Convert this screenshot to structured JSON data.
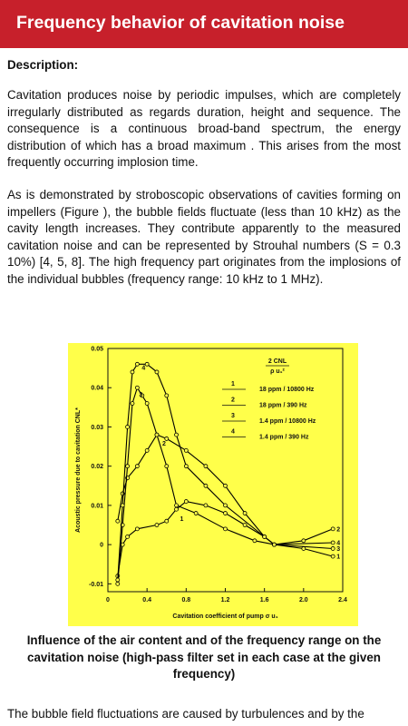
{
  "header": {
    "title": "Frequency behavior of cavitation noise"
  },
  "description_label": "Description:",
  "paragraphs": [
    "Cavitation produces noise by periodic impulses, which are completely irregularly distributed as regards duration, height and sequence. The consequence is a continuous broad-band spectrum, the energy distribution of which has a broad maximum . This arises from the most frequently occurring implosion time.",
    "As is demonstrated by stroboscopic observations of cavities forming on impellers (Figure ), the bubble fields fluctuate (less than 10 kHz) as the cavity length increases. They contribute apparently to the measured cavitation noise and can be represented by Strouhal numbers (S = 0.3 10%) [4, 5, 8]. The high frequency part originates from the implosions of the individual bubbles (frequency range: 10 kHz to 1 MHz)."
  ],
  "chart_data": {
    "type": "line",
    "xlabel": "Cavitation coefficient of pump  σ u₁",
    "ylabel": "Acoustic pressure due to cavitation CNL*",
    "legend_title_top": "2 CNL",
    "legend_title_bottom": "ρ u₁²",
    "xlim": [
      0,
      2.4
    ],
    "ylim": [
      -0.012,
      0.05
    ],
    "xticks": [
      0,
      0.4,
      0.8,
      1.2,
      1.6,
      {
        "value": 2,
        "label": "2.0"
      },
      2.4
    ],
    "yticks": [
      -0.01,
      0,
      0.01,
      0.02,
      0.03,
      0.04,
      0.05
    ],
    "background": "#ffff4a",
    "series": [
      {
        "name": "1",
        "label": "18 ppm / 10800 Hz",
        "color": "#000000",
        "x": [
          0.1,
          0.15,
          0.2,
          0.3,
          0.5,
          0.6,
          0.7,
          0.8,
          1.0,
          1.2,
          1.4,
          1.6,
          1.7,
          2.0,
          2.3
        ],
        "values": [
          -0.008,
          0,
          0.002,
          0.004,
          0.005,
          0.006,
          0.009,
          0.011,
          0.01,
          0.008,
          0.005,
          0.002,
          0,
          -0.001,
          -0.003
        ]
      },
      {
        "name": "2",
        "label": "18 ppm / 390 Hz",
        "color": "#000000",
        "x": [
          0.1,
          0.15,
          0.2,
          0.3,
          0.4,
          0.5,
          0.6,
          0.8,
          1.0,
          1.2,
          1.4,
          1.6,
          1.7,
          2.0,
          2.3
        ],
        "values": [
          0.006,
          0.013,
          0.017,
          0.02,
          0.024,
          0.028,
          0.027,
          0.024,
          0.02,
          0.015,
          0.008,
          0.002,
          0,
          0.001,
          0.004
        ]
      },
      {
        "name": "3",
        "label": "1.4 ppm / 10800 Hz",
        "color": "#000000",
        "x": [
          0.1,
          0.15,
          0.2,
          0.25,
          0.3,
          0.35,
          0.4,
          0.5,
          0.6,
          0.7,
          0.9,
          1.2,
          1.5,
          1.7,
          2.3
        ],
        "values": [
          -0.01,
          0.005,
          0.02,
          0.036,
          0.04,
          0.038,
          0.036,
          0.028,
          0.02,
          0.01,
          0.008,
          0.004,
          0.001,
          0,
          -0.001
        ]
      },
      {
        "name": "4",
        "label": "1.4 ppm / 390  Hz",
        "color": "#000000",
        "x": [
          0.1,
          0.15,
          0.2,
          0.25,
          0.3,
          0.4,
          0.5,
          0.6,
          0.7,
          0.8,
          1.0,
          1.2,
          1.6,
          1.7,
          2.3
        ],
        "values": [
          -0.009,
          0.01,
          0.03,
          0.044,
          0.046,
          0.046,
          0.044,
          0.038,
          0.028,
          0.02,
          0.015,
          0.01,
          0.002,
          0,
          0.0005
        ]
      }
    ]
  },
  "caption": "Influence of the air content and of the frequency range on the cavitation noise (high-pass filter set in each case at the given frequency)",
  "continuation": "The bubble field fluctuations are caused by turbulences and by the"
}
